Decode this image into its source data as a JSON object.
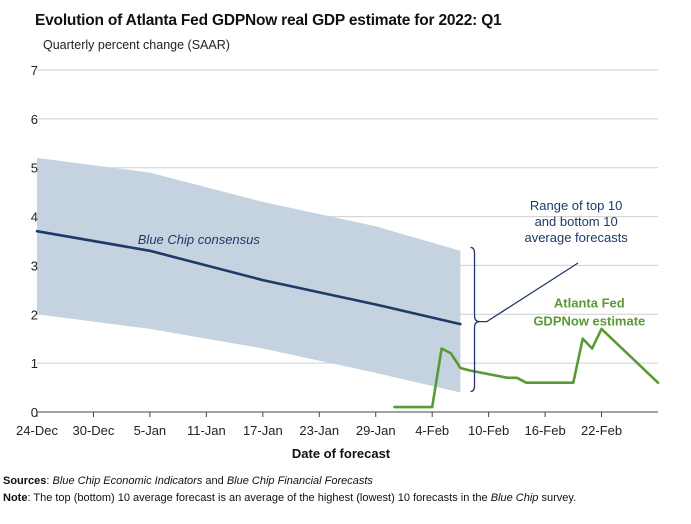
{
  "chart_data": {
    "type": "line",
    "title": "Evolution of Atlanta Fed GDPNow real GDP estimate for 2022: Q1",
    "subtitle": "Quarterly percent change (SAAR)",
    "xlabel": "Date of forecast",
    "ylabel": "",
    "ylim": [
      0,
      7
    ],
    "yticks": [
      "0",
      "1",
      "2",
      "3",
      "4",
      "5",
      "6",
      "7"
    ],
    "xticks": [
      "24-Dec",
      "30-Dec",
      "5-Jan",
      "11-Jan",
      "17-Jan",
      "23-Jan",
      "29-Jan",
      "4-Feb",
      "10-Feb",
      "16-Feb",
      "22-Feb"
    ],
    "grid": true,
    "range_band": {
      "upper": [
        [
          0,
          5.2
        ],
        [
          12,
          4.9
        ],
        [
          24,
          4.3
        ],
        [
          36,
          3.8
        ],
        [
          45,
          3.3
        ]
      ],
      "lower": [
        [
          0,
          2.0
        ],
        [
          12,
          1.7
        ],
        [
          24,
          1.3
        ],
        [
          36,
          0.8
        ],
        [
          45,
          0.4
        ]
      ]
    },
    "series": [
      {
        "name": "Blue Chip consensus",
        "color": "#1f3a68",
        "points": [
          [
            0,
            3.7
          ],
          [
            12,
            3.3
          ],
          [
            24,
            2.7
          ],
          [
            36,
            2.2
          ],
          [
            45,
            1.8
          ]
        ]
      },
      {
        "name": "Atlanta Fed GDPNow estimate",
        "color": "#5a9a35",
        "points": [
          [
            38,
            0.1
          ],
          [
            42,
            0.1
          ],
          [
            43,
            1.3
          ],
          [
            44,
            1.2
          ],
          [
            45,
            0.9
          ],
          [
            46,
            0.85
          ],
          [
            50,
            0.7
          ],
          [
            51,
            0.7
          ],
          [
            52,
            0.6
          ],
          [
            56,
            0.6
          ],
          [
            57,
            0.6
          ],
          [
            58,
            1.5
          ],
          [
            59,
            1.3
          ],
          [
            60,
            1.7
          ],
          [
            66,
            0.6
          ]
        ]
      }
    ],
    "annotations": {
      "consensus_label": "Blue Chip consensus",
      "range_label_lines": [
        "Range of top 10",
        "and bottom 10",
        "average forecasts"
      ],
      "gdpnow_label_lines": [
        "Atlanta Fed",
        "GDPNow estimate"
      ]
    }
  },
  "footer": {
    "sources_prefix": "Sources",
    "sources_colon": ": ",
    "sources_source1": "Blue Chip Economic Indicators",
    "sources_and": " and ",
    "sources_source2": "Blue Chip Financial Forecasts",
    "note_prefix": "Note",
    "note_text": ": The top (bottom) 10 average forecast is an average of the highest (lowest) 10 forecasts in the ",
    "note_italic": "Blue Chip",
    "note_end": " survey."
  },
  "colors": {
    "band": "#c5d3e0",
    "consensus": "#1f3a68",
    "gdpnow": "#5a9a35",
    "grid": "#cfcfcf",
    "bracket": "#1f3a68"
  }
}
